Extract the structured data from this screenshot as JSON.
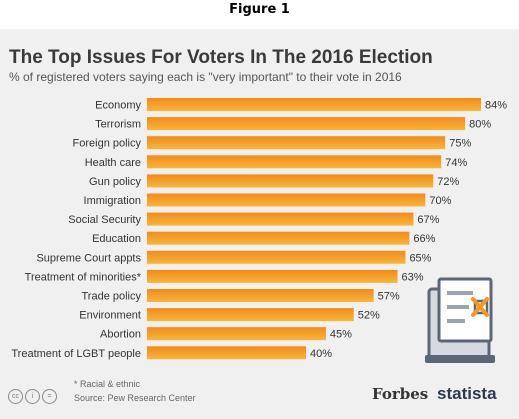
{
  "figure_caption": "Figure 1",
  "footnote": "* Racial & ethnic",
  "source": "Source: Pew Research Center",
  "logos": {
    "forbes": "Forbes",
    "statista": "statista"
  },
  "icons": [
    "creative-commons-icon",
    "attribution-icon",
    "no-derivatives-icon",
    "ballot-icon"
  ],
  "colors": {
    "bar_top": "#f38a1a",
    "bar_bottom": "#f7b63a",
    "background": "#f0f0f0"
  },
  "chart_data": {
    "type": "bar",
    "orientation": "horizontal",
    "title": "The Top Issues For Voters In The 2016 Election",
    "subtitle": "% of registered voters saying each is \"very important\" to their vote in 2016",
    "categories": [
      "Economy",
      "Terrorism",
      "Foreign policy",
      "Health care",
      "Gun policy",
      "Immigration",
      "Social Security",
      "Education",
      "Supreme Court appts",
      "Treatment of minorities*",
      "Trade policy",
      "Environment",
      "Abortion",
      "Treatment of LGBT people"
    ],
    "values": [
      84,
      80,
      75,
      74,
      72,
      70,
      67,
      66,
      65,
      63,
      57,
      52,
      45,
      40
    ],
    "value_labels": [
      "84%",
      "80%",
      "75%",
      "74%",
      "72%",
      "70%",
      "67%",
      "66%",
      "65%",
      "63%",
      "57%",
      "52%",
      "45%",
      "40%"
    ],
    "xlim": [
      0,
      84
    ],
    "grid": false,
    "legend": "none"
  }
}
